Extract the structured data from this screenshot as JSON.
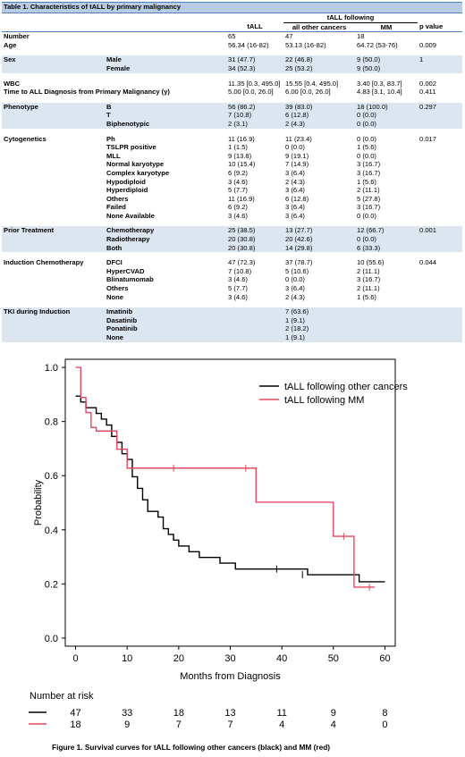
{
  "table": {
    "title": "Table 1. Characteristics of tALL by primary malignancy",
    "group_header": "tALL following",
    "columns": [
      "tALL",
      "all other cancers",
      "MM",
      "p value"
    ],
    "rows": [
      {
        "label": "Number",
        "sub": "",
        "v": [
          "65",
          "47",
          "18",
          ""
        ],
        "band": false
      },
      {
        "label": "Age",
        "sub": "",
        "v": [
          "56.34 (16-82)",
          "53.13 (16-82)",
          "64.72 (53-76)",
          "0.009"
        ],
        "band": false
      },
      {
        "label": "Sex",
        "sub": "Male",
        "v": [
          "31 (47.7)",
          "22 (46.8)",
          "9 (50.0)",
          "1"
        ],
        "band": true
      },
      {
        "label": "",
        "sub": "Female",
        "v": [
          "34 (52.3)",
          "25 (53.2)",
          "9 (50.0)",
          ""
        ],
        "band": true
      },
      {
        "label": "WBC",
        "sub": "",
        "v": [
          "11.35 [0.3, 495.0]",
          "15.55 [0.4, 495.0]",
          "3.40 [0.3, 83.7]",
          "0.002"
        ],
        "band": false
      },
      {
        "label": "Time to ALL Diagnosis from Primary Malignancy (y)",
        "sub": "",
        "v": [
          "5.00 [0.0, 26.0]",
          "6.00 [0.0, 26.0]",
          "4.83 [3.1, 10.4]",
          "0.411"
        ],
        "band": false
      },
      {
        "label": "Phenotype",
        "sub": "B",
        "v": [
          "56 (86.2)",
          "39 (83.0)",
          "18 (100.0)",
          "0.297"
        ],
        "band": true
      },
      {
        "label": "",
        "sub": "T",
        "v": [
          "7 (10.8)",
          "6 (12.8)",
          "0 (0.0)",
          ""
        ],
        "band": true
      },
      {
        "label": "",
        "sub": "Biphenotypic",
        "v": [
          "2 (3.1)",
          "2 (4.3)",
          "0 (0.0)",
          ""
        ],
        "band": true
      },
      {
        "label": "Cytogenetics",
        "sub": "Ph",
        "v": [
          "11 (16.9)",
          "11 (23.4)",
          "0 (0.0)",
          "0.017"
        ],
        "band": false
      },
      {
        "label": "",
        "sub": "TSLPR positive",
        "v": [
          "1 (1.5)",
          "0 (0.0)",
          "1 (5.6)",
          ""
        ],
        "band": false
      },
      {
        "label": "",
        "sub": "MLL",
        "v": [
          "9 (13.8)",
          "9 (19.1)",
          "0 (0.0)",
          ""
        ],
        "band": false
      },
      {
        "label": "",
        "sub": "Normal karyotype",
        "v": [
          "10 (15.4)",
          "7 (14.9)",
          "3 (16.7)",
          ""
        ],
        "band": false
      },
      {
        "label": "",
        "sub": "Complex karyotype",
        "v": [
          "6 (9.2)",
          "3 (6.4)",
          "3 (16.7)",
          ""
        ],
        "band": false
      },
      {
        "label": "",
        "sub": "Hypodiploid",
        "v": [
          "3 (4.6)",
          "2 (4.3)",
          "1 (5.6)",
          ""
        ],
        "band": false
      },
      {
        "label": "",
        "sub": "Hyperdiploid",
        "v": [
          "5 (7.7)",
          "3 (6.4)",
          "2 (11.1)",
          ""
        ],
        "band": false
      },
      {
        "label": "",
        "sub": "Others",
        "v": [
          "11 (16.9)",
          "6 (12.8)",
          "5 (27.8)",
          ""
        ],
        "band": false
      },
      {
        "label": "",
        "sub": "Failed",
        "v": [
          "6 (9.2)",
          "3 (6.4)",
          "3 (16.7)",
          ""
        ],
        "band": false
      },
      {
        "label": "",
        "sub": "None Available",
        "v": [
          "3 (4.6)",
          "3 (6.4)",
          "0 (0.0)",
          ""
        ],
        "band": false
      },
      {
        "label": "Prior Treatment",
        "sub": "Chemotherapy",
        "v": [
          "25 (38.5)",
          "13 (27.7)",
          "12 (66.7)",
          "0.001"
        ],
        "band": true
      },
      {
        "label": "",
        "sub": "Radiotherapy",
        "v": [
          "20 (30.8)",
          "20 (42.6)",
          "0 (0.0)",
          ""
        ],
        "band": true
      },
      {
        "label": "",
        "sub": "Both",
        "v": [
          "20 (30.8)",
          "14 (29.8)",
          "6 (33.3)",
          ""
        ],
        "band": true
      },
      {
        "label": "Induction Chemotherapy",
        "sub": "DFCI",
        "v": [
          "47 (72.3)",
          "37 (78.7)",
          "10 (55.6)",
          "0.044"
        ],
        "band": false
      },
      {
        "label": "",
        "sub": "HyperCVAD",
        "v": [
          "7 (10.8)",
          "5 (10.6)",
          "2 (11.1)",
          ""
        ],
        "band": false
      },
      {
        "label": "",
        "sub": "Blinatumomab",
        "v": [
          "3 (4.6)",
          "0 (0.0)",
          "3 (16.7)",
          ""
        ],
        "band": false
      },
      {
        "label": "",
        "sub": "Others",
        "v": [
          "5 (7.7)",
          "3 (6.4)",
          "2 (11.1)",
          ""
        ],
        "band": false
      },
      {
        "label": "",
        "sub": "None",
        "v": [
          "3 (4.6)",
          "2 (4.3)",
          "1 (5.6)",
          ""
        ],
        "band": false
      },
      {
        "label": "TKI during Induction",
        "sub": "Imatinib",
        "v": [
          "",
          "7 (63.6)",
          "",
          ""
        ],
        "band": true
      },
      {
        "label": "",
        "sub": "Dasatinib",
        "v": [
          "",
          "1 (9.1)",
          "",
          ""
        ],
        "band": true
      },
      {
        "label": "",
        "sub": "Ponatinib",
        "v": [
          "",
          "2 (18.2)",
          "",
          ""
        ],
        "band": true
      },
      {
        "label": "",
        "sub": "None",
        "v": [
          "",
          "1 (9.1)",
          "",
          ""
        ],
        "band": true
      }
    ]
  },
  "chart_data": {
    "type": "line",
    "xlabel": "Months from Diagnosis",
    "ylabel": "Probability",
    "xlim": [
      -2,
      62
    ],
    "ylim": [
      -0.03,
      1.03
    ],
    "xticks": [
      0,
      10,
      20,
      30,
      40,
      50,
      60
    ],
    "yticks": [
      0.0,
      0.2,
      0.4,
      0.6,
      0.8,
      1.0
    ],
    "ytick_labels": [
      "0.0",
      "0.2",
      "0.4",
      "0.6",
      "0.8",
      "1.0"
    ],
    "series": [
      {
        "name": "tALL following other cancers",
        "color": "#000000",
        "steps": [
          [
            0,
            0.894
          ],
          [
            1,
            0.872
          ],
          [
            2,
            0.851
          ],
          [
            4,
            0.83
          ],
          [
            5,
            0.809
          ],
          [
            6,
            0.787
          ],
          [
            7,
            0.745
          ],
          [
            8,
            0.723
          ],
          [
            9,
            0.681
          ],
          [
            10,
            0.66
          ],
          [
            11,
            0.596
          ],
          [
            12,
            0.553
          ],
          [
            13,
            0.511
          ],
          [
            14,
            0.468
          ],
          [
            16,
            0.447
          ],
          [
            17,
            0.404
          ],
          [
            18,
            0.383
          ],
          [
            19,
            0.362
          ],
          [
            20,
            0.34
          ],
          [
            22,
            0.319
          ],
          [
            24,
            0.298
          ],
          [
            28,
            0.277
          ],
          [
            31,
            0.255
          ],
          [
            45,
            0.234
          ],
          [
            55,
            0.208
          ],
          [
            60,
            0.208
          ]
        ],
        "censors": [
          [
            39,
            0.255
          ],
          [
            44,
            0.234
          ]
        ]
      },
      {
        "name": "tALL following MM",
        "color": "#e8475f",
        "steps": [
          [
            0,
            1.0
          ],
          [
            1,
            0.889
          ],
          [
            2,
            0.833
          ],
          [
            3,
            0.778
          ],
          [
            4,
            0.765
          ],
          [
            8,
            0.698
          ],
          [
            10,
            0.628
          ],
          [
            35,
            0.502
          ],
          [
            50,
            0.376
          ],
          [
            54,
            0.188
          ],
          [
            58,
            0.188
          ]
        ],
        "censors": [
          [
            19,
            0.628
          ],
          [
            33,
            0.628
          ],
          [
            52,
            0.376
          ],
          [
            57,
            0.188
          ]
        ]
      }
    ],
    "risk_table": {
      "title": "Number at risk",
      "times": [
        0,
        10,
        20,
        30,
        40,
        50,
        60
      ],
      "rows": [
        {
          "color": "#000000",
          "values": [
            47,
            33,
            18,
            13,
            11,
            9,
            8
          ]
        },
        {
          "color": "#e8475f",
          "values": [
            18,
            9,
            7,
            7,
            4,
            4,
            0
          ]
        }
      ]
    }
  },
  "caption": "Figure 1. Survival curves for tALL following other cancers (black) and MM (red)"
}
